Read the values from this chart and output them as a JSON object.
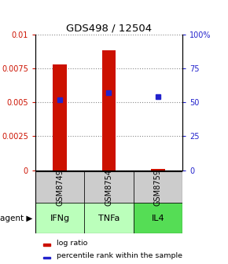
{
  "title": "GDS498 / 12504",
  "samples": [
    "GSM8749",
    "GSM8754",
    "GSM8759"
  ],
  "agents": [
    "IFNg",
    "TNFa",
    "IL4"
  ],
  "log_ratio": [
    0.0078,
    0.0088,
    0.0001
  ],
  "percentile_rank": [
    52,
    57,
    54
  ],
  "bar_color": "#cc1100",
  "dot_color": "#2222cc",
  "ylim_left": [
    0,
    0.01
  ],
  "ylim_right": [
    0,
    100
  ],
  "yticks_left": [
    0,
    0.0025,
    0.005,
    0.0075,
    0.01
  ],
  "yticks_right": [
    0,
    25,
    50,
    75,
    100
  ],
  "ytick_labels_left": [
    "0",
    "0.0025",
    "0.005",
    "0.0075",
    "0.01"
  ],
  "ytick_labels_right": [
    "0",
    "25",
    "50",
    "75",
    "100%"
  ],
  "agent_colors": [
    "#bbffbb",
    "#bbffbb",
    "#55dd55"
  ],
  "sample_box_color": "#cccccc",
  "legend_bar_color": "#cc1100",
  "legend_dot_color": "#2222cc",
  "bar_width": 0.28
}
